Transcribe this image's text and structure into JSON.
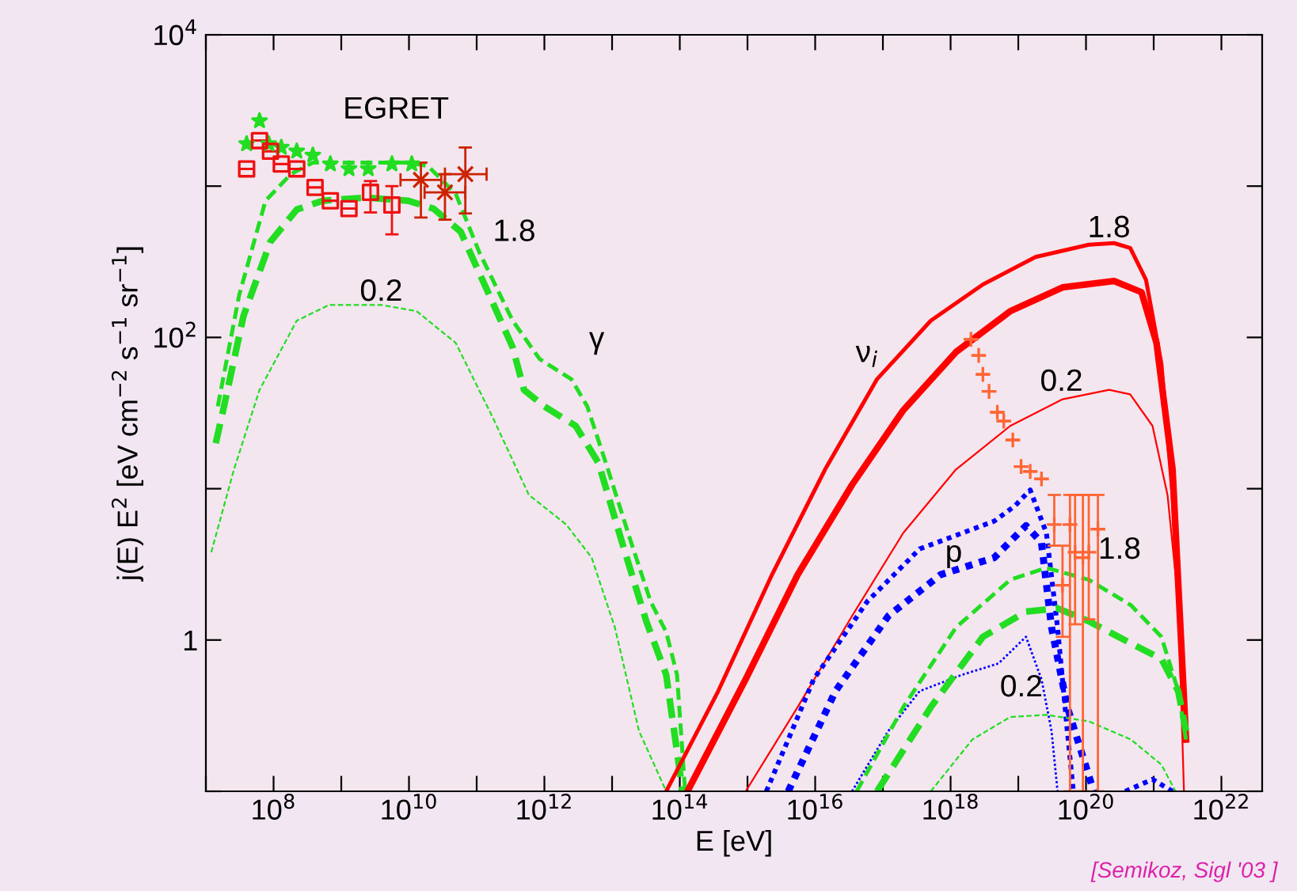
{
  "chart_data": {
    "type": "line",
    "xlabel": "E [eV]",
    "ylabel": "j(E) E$^{2}$ [eV cm$^{−2}$ s$^{−1}$ sr$^{−1}$]",
    "log": "xy",
    "grid": false,
    "legend": false,
    "xlim": [
      10000000.0,
      4e+22
    ],
    "ylim": [
      0.1,
      10000
    ],
    "xticks": [
      {
        "value": 10000000.0,
        "label": null
      },
      {
        "value": 100000000.0,
        "label": "10$^{8}$"
      },
      {
        "value": 1000000000.0,
        "label": null
      },
      {
        "value": 10000000000.0,
        "label": "10$^{10}$"
      },
      {
        "value": 100000000000.0,
        "label": null
      },
      {
        "value": 1000000000000.0,
        "label": "10$^{12}$"
      },
      {
        "value": 10000000000000.0,
        "label": null
      },
      {
        "value": 100000000000000.0,
        "label": "10$^{14}$"
      },
      {
        "value": 1000000000000000.0,
        "label": null
      },
      {
        "value": 1e+16,
        "label": "10$^{16}$"
      },
      {
        "value": 1e+17,
        "label": null
      },
      {
        "value": 1e+18,
        "label": "10$^{18}$"
      },
      {
        "value": 1e+19,
        "label": null
      },
      {
        "value": 1e+20,
        "label": "10$^{20}$"
      },
      {
        "value": 1e+21,
        "label": null
      },
      {
        "value": 1e+22,
        "label": "10$^{22}$"
      }
    ],
    "yticks": [
      {
        "value": 0.1,
        "label": null
      },
      {
        "value": 1,
        "label": "1"
      },
      {
        "value": 10,
        "label": null
      },
      {
        "value": 100,
        "label": "10$^{2}$"
      },
      {
        "value": 1000,
        "label": null
      },
      {
        "value": 10000,
        "label": "10$^{4}$"
      }
    ],
    "series": [
      {
        "type": "line",
        "color": "#22dd22",
        "line_style": "dashed",
        "x": [
          15000000.0,
          31000000.0,
          76000000.0,
          180000000.0,
          380000000.0,
          2300000000.0,
          9800000000.0,
          19000000000.0,
          49000000000.0,
          110000000000.0,
          340000000000.0,
          850000000000.0,
          2500000000000.0,
          4300000000000.0,
          8700000000000.0,
          18000000000000.0,
          37000000000000.0,
          63000000000000.0,
          91000000000000.0,
          120000000000000.0
        ],
        "values": [
          35,
          190,
          800,
          1200,
          1430,
          1430,
          1430,
          1360,
          890,
          363,
          129,
          72,
          53,
          35,
          13.4,
          4.8,
          1.8,
          1.13,
          0.59,
          0.1
        ]
      },
      {
        "type": "line",
        "color": "#22dd22",
        "line_style": "dashed",
        "x": [
          14000000.0,
          18000000.0,
          36000000.0,
          90000000.0,
          220000000.0,
          530000000.0,
          2300000000.0,
          9800000000.0,
          23000000000.0,
          58000000000.0,
          140000000000.0,
          340000000000.0,
          500000000000.0,
          1000000000000.0,
          2900000000000.0,
          6300000000000.0,
          15000000000000.0,
          32000000000000.0,
          63000000000000.0,
          110000000000000.0
        ],
        "values": [
          20,
          33,
          139,
          430,
          700,
          800,
          840,
          800,
          710,
          500,
          209,
          86,
          45,
          35,
          26,
          14.8,
          4.0,
          1.33,
          0.59,
          0.1
        ]
      },
      {
        "type": "line",
        "color": "#22dd22",
        "line_style": "dashed",
        "x": [
          12000000.0,
          26000000.0,
          62000000.0,
          220000000.0,
          660000000.0,
          3900000000.0,
          13000000000.0,
          49000000000.0,
          170000000000.0,
          590000000000.0,
          2100000000000.0,
          5000000000000.0,
          11000000000000.0,
          25000000000000.0,
          63000000000000.0
        ],
        "values": [
          3.8,
          13.4,
          45,
          129,
          164,
          164,
          149,
          92,
          30,
          9.1,
          5.8,
          3.5,
          1.21,
          0.25,
          0.1
        ]
      },
      {
        "type": "line",
        "color": "#ff0000",
        "line_style": "solid",
        "x": [
          63000000000000.0,
          370000000000000.0,
          2300000000000000.0,
          1.4e+16,
          8.2e+16,
          5.1e+17,
          3e+18,
          1.8e+19,
          1.1e+20,
          2.6e+20,
          4.5e+20,
          7.7e+20,
          1.3e+21,
          1.9e+21,
          2.5e+21,
          3e+21
        ],
        "values": [
          0.1,
          0.46,
          2.7,
          13.4,
          53,
          129,
          224,
          340,
          410,
          420,
          390,
          240,
          67,
          9.1,
          1.21,
          0.22
        ]
      },
      {
        "type": "line",
        "color": "#ff0000",
        "line_style": "solid",
        "x": [
          130000000000000.0,
          940000000000000.0,
          5500000000000000.0,
          3.5e+16,
          2e+17,
          1.2e+18,
          7.6e+18,
          4.5e+19,
          2.6e+20,
          6.6e+20,
          1.1e+21,
          1.9e+21,
          3e+21
        ],
        "values": [
          0.1,
          0.55,
          2.7,
          10.6,
          33,
          80,
          149,
          214,
          236,
          199,
          92,
          13.4,
          0.22
        ]
      },
      {
        "type": "line",
        "color": "#ff0000",
        "line_style": "solid",
        "x": [
          940000000000000.0,
          5500000000000000.0,
          3.5e+16,
          2e+17,
          1.2e+18,
          7.6e+18,
          4.5e+19,
          2.2e+20,
          4.5e+20,
          9.6e+20,
          1.6e+21,
          2.3e+21,
          2.8e+21
        ],
        "values": [
          0.1,
          0.36,
          1.44,
          5.1,
          13.4,
          26,
          39,
          45,
          42,
          26,
          9.1,
          1.8,
          0.1
        ]
      },
      {
        "type": "line",
        "color": "#0000ff",
        "line_style": "dotted",
        "x": [
          1900000000000000.0,
          9500000000000000.0,
          5.9e+16,
          3.5e+17,
          1.5e+18,
          4.4e+18,
          8.9e+18,
          1.5e+19,
          2.6e+19,
          3.8e+19,
          5.3e+19,
          6.5e+19
        ],
        "values": [
          0.1,
          0.55,
          1.8,
          4.0,
          5.1,
          6.1,
          7.7,
          9.8,
          5.1,
          1.21,
          0.25,
          0.1
        ]
      },
      {
        "type": "line",
        "color": "#0000ff",
        "line_style": "dotted",
        "x": [
          4000000000000000.0,
          2e+16,
          1.2e+17,
          7.1e+17,
          4.4e+18,
          1.3e+19,
          2.2e+19,
          3.1e+19,
          5.3e+19,
          1.3e+20
        ],
        "values": [
          0.1,
          0.46,
          1.44,
          2.7,
          3.5,
          5.7,
          4.4,
          1.21,
          0.36,
          0.1
        ]
      },
      {
        "type": "line",
        "color": "#0000ff",
        "line_style": "dotted",
        "x": [
          3.5e+16,
          1.2e+17,
          3.5e+17,
          1.5e+18,
          5.1e+18,
          1.3e+19,
          2.2e+19,
          3.1e+19,
          3.8e+19
        ],
        "values": [
          0.1,
          0.25,
          0.46,
          0.59,
          0.7,
          1.05,
          0.55,
          0.25,
          0.1
        ]
      },
      {
        "type": "line",
        "color": "#0000ff",
        "line_style": "dotted",
        "x": [
          3.8e+20,
          9.6e+20,
          1.9e+21
        ],
        "values": [
          0.1,
          0.12,
          0.1
        ]
      },
      {
        "type": "line",
        "color": "#22dd22",
        "line_style": "dashed",
        "x": [
          4.1e+16,
          2e+17,
          1.2e+18,
          7.6e+18,
          2.6e+19,
          1.1e+20,
          4.6e+20,
          1.3e+21,
          2.3e+21,
          3e+21
        ],
        "values": [
          0.1,
          0.36,
          1.21,
          2.5,
          3.0,
          2.5,
          1.7,
          1.05,
          0.46,
          0.22
        ]
      },
      {
        "type": "line",
        "color": "#22dd22",
        "line_style": "dashed",
        "x": [
          8.2e+16,
          5.1e+17,
          3e+18,
          1.3e+19,
          3.8e+19,
          1.1e+20,
          4.6e+20,
          1.3e+21,
          2.3e+21,
          3e+21
        ],
        "values": [
          0.1,
          0.36,
          1.05,
          1.54,
          1.62,
          1.33,
          0.95,
          0.75,
          0.46,
          0.25
        ]
      },
      {
        "type": "line",
        "color": "#22dd22",
        "line_style": "dashed",
        "x": [
          5.1e+17,
          2.1e+18,
          7.6e+18,
          2.6e+19,
          1.1e+20,
          4.6e+20,
          1.3e+21,
          2.1e+21
        ],
        "values": [
          0.1,
          0.22,
          0.31,
          0.32,
          0.29,
          0.22,
          0.15,
          0.1
        ]
      },
      {
        "type": "scatter",
        "color": "#22dd22",
        "marker": "star",
        "x": [
          40000000.0,
          62000000.0,
          85000000.0,
          130000000.0,
          220000000.0,
          380000000.0,
          690000000.0,
          1300000000.0,
          2500000000.0,
          5600000000.0,
          11000000000.0
        ],
        "values": [
          1900,
          2700,
          1900,
          1800,
          1700,
          1600,
          1400,
          1300,
          1300,
          1400,
          1400
        ]
      },
      {
        "type": "scatter",
        "color": "#ee1111",
        "marker": "square",
        "x": [
          40000000.0,
          62000000.0,
          90000000.0,
          130000000.0,
          220000000.0,
          410000000.0,
          690000000.0,
          1300000000.0,
          2700000000.0,
          5600000000.0
        ],
        "values": [
          1300,
          2000,
          1700,
          1400,
          1300,
          980,
          800,
          710,
          910,
          750
        ],
        "errors": [
          null,
          null,
          null,
          null,
          null,
          null,
          null,
          null,
          [
            670,
            1080
          ],
          [
            480,
            1000
          ]
        ]
      },
      {
        "type": "scatter",
        "color": "#cc2200",
        "marker": "cross",
        "x": [
          15000000000.0,
          34000000000.0,
          68000000000.0
        ],
        "values": [
          1100,
          910,
          1200
        ],
        "errors": [
          [
            620,
            1430
          ],
          [
            600,
            1200
          ],
          [
            660,
            1800
          ]
        ],
        "xerrors": [
          [
            7500000000.0,
            30000000000.0
          ],
          [
            17000000000.0,
            68000000000.0
          ],
          [
            34000000000.0,
            140000000000.0
          ]
        ]
      },
      {
        "type": "scatter",
        "color": "#ff6633",
        "marker": "plus",
        "x": [
          2e+18,
          2.6e+18,
          3e+18,
          3.7e+18,
          4.9e+18,
          6.1e+18,
          8.3e+18,
          1.1e+19,
          1.5e+19,
          2.2e+19,
          3.4e+19,
          4.5e+19,
          5.8e+19,
          6.9e+19,
          9e+19,
          1.1e+20,
          1.5e+20
        ],
        "values": [
          97,
          76,
          57,
          44,
          32,
          28,
          21,
          14,
          13,
          11.6,
          5.8,
          2.3,
          5.8,
          3.8,
          3.5,
          3.8,
          5.4
        ],
        "errors": [
          null,
          null,
          null,
          null,
          null,
          null,
          null,
          null,
          null,
          null,
          [
            4.2,
            9.1
          ],
          [
            1.05,
            4.2
          ],
          [
            0.1,
            9.1
          ],
          [
            1.27,
            9.1
          ],
          [
            0.1,
            9.1
          ],
          [
            1.37,
            9.1
          ],
          [
            0.1,
            9.1
          ]
        ]
      }
    ],
    "annotations": [
      "EGRET",
      "1.8",
      "0.2",
      "γ",
      "ν$_{i}$",
      "1.8",
      "0.2",
      "p",
      "1.8",
      "0.2",
      "[Semikoz, Sigl '03 ]"
    ]
  }
}
